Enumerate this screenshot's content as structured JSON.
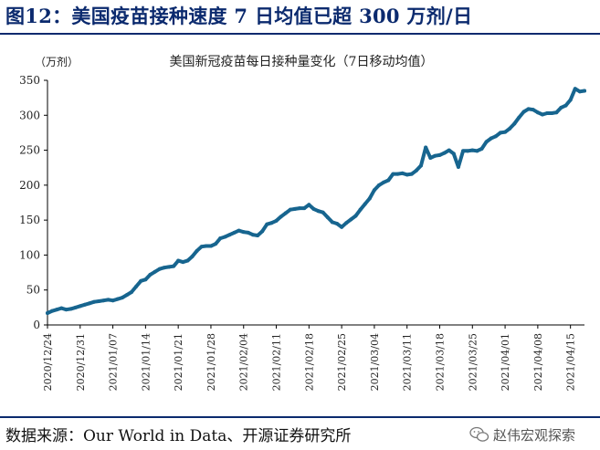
{
  "header": {
    "figure_title": "图12：美国疫苗接种速度 7 日均值已超 300 万剂/日"
  },
  "footer": {
    "source": "数据来源：Our World in Data、开源证券研究所",
    "watermark": "赵伟宏观探索"
  },
  "colors": {
    "title": "#0b2a6e",
    "line": "#17658f",
    "axis": "#000000"
  },
  "chart_data": {
    "type": "line",
    "title": "美国新冠疫苗每日接种量变化（7日移动均值）",
    "ylabel": "（万剂）",
    "xlabel": "",
    "ylim": [
      0,
      350
    ],
    "yticks": [
      0,
      50,
      100,
      150,
      200,
      250,
      300,
      350
    ],
    "x_tick_labels": [
      "2020/12/24",
      "2020/12/31",
      "2021/01/07",
      "2021/01/14",
      "2021/01/21",
      "2021/01/28",
      "2021/02/04",
      "2021/02/11",
      "2021/02/18",
      "2021/02/25",
      "2021/03/04",
      "2021/03/11",
      "2021/03/18",
      "2021/03/25",
      "2021/04/01",
      "2021/04/08",
      "2021/04/15"
    ],
    "start_date": "2020/12/24",
    "series": [
      {
        "name": "7日移动均值",
        "values": [
          17,
          20,
          22,
          24,
          22,
          23,
          25,
          27,
          29,
          31,
          33,
          34,
          35,
          36,
          35,
          37,
          39,
          43,
          47,
          55,
          63,
          65,
          72,
          76,
          80,
          82,
          83,
          84,
          92,
          90,
          92,
          98,
          106,
          112,
          113,
          113,
          116,
          124,
          126,
          129,
          132,
          135,
          133,
          132,
          129,
          128,
          134,
          144,
          146,
          149,
          155,
          160,
          165,
          166,
          167,
          167,
          172,
          166,
          163,
          161,
          154,
          147,
          145,
          140,
          146,
          151,
          156,
          165,
          173,
          181,
          193,
          200,
          204,
          207,
          216,
          216,
          217,
          215,
          216,
          221,
          228,
          254,
          239,
          242,
          243,
          246,
          250,
          245,
          226,
          249,
          249,
          250,
          249,
          252,
          262,
          267,
          270,
          275,
          276,
          281,
          288,
          297,
          305,
          309,
          308,
          304,
          301,
          303,
          303,
          304,
          311,
          314,
          322,
          338,
          334,
          335
        ]
      }
    ]
  }
}
